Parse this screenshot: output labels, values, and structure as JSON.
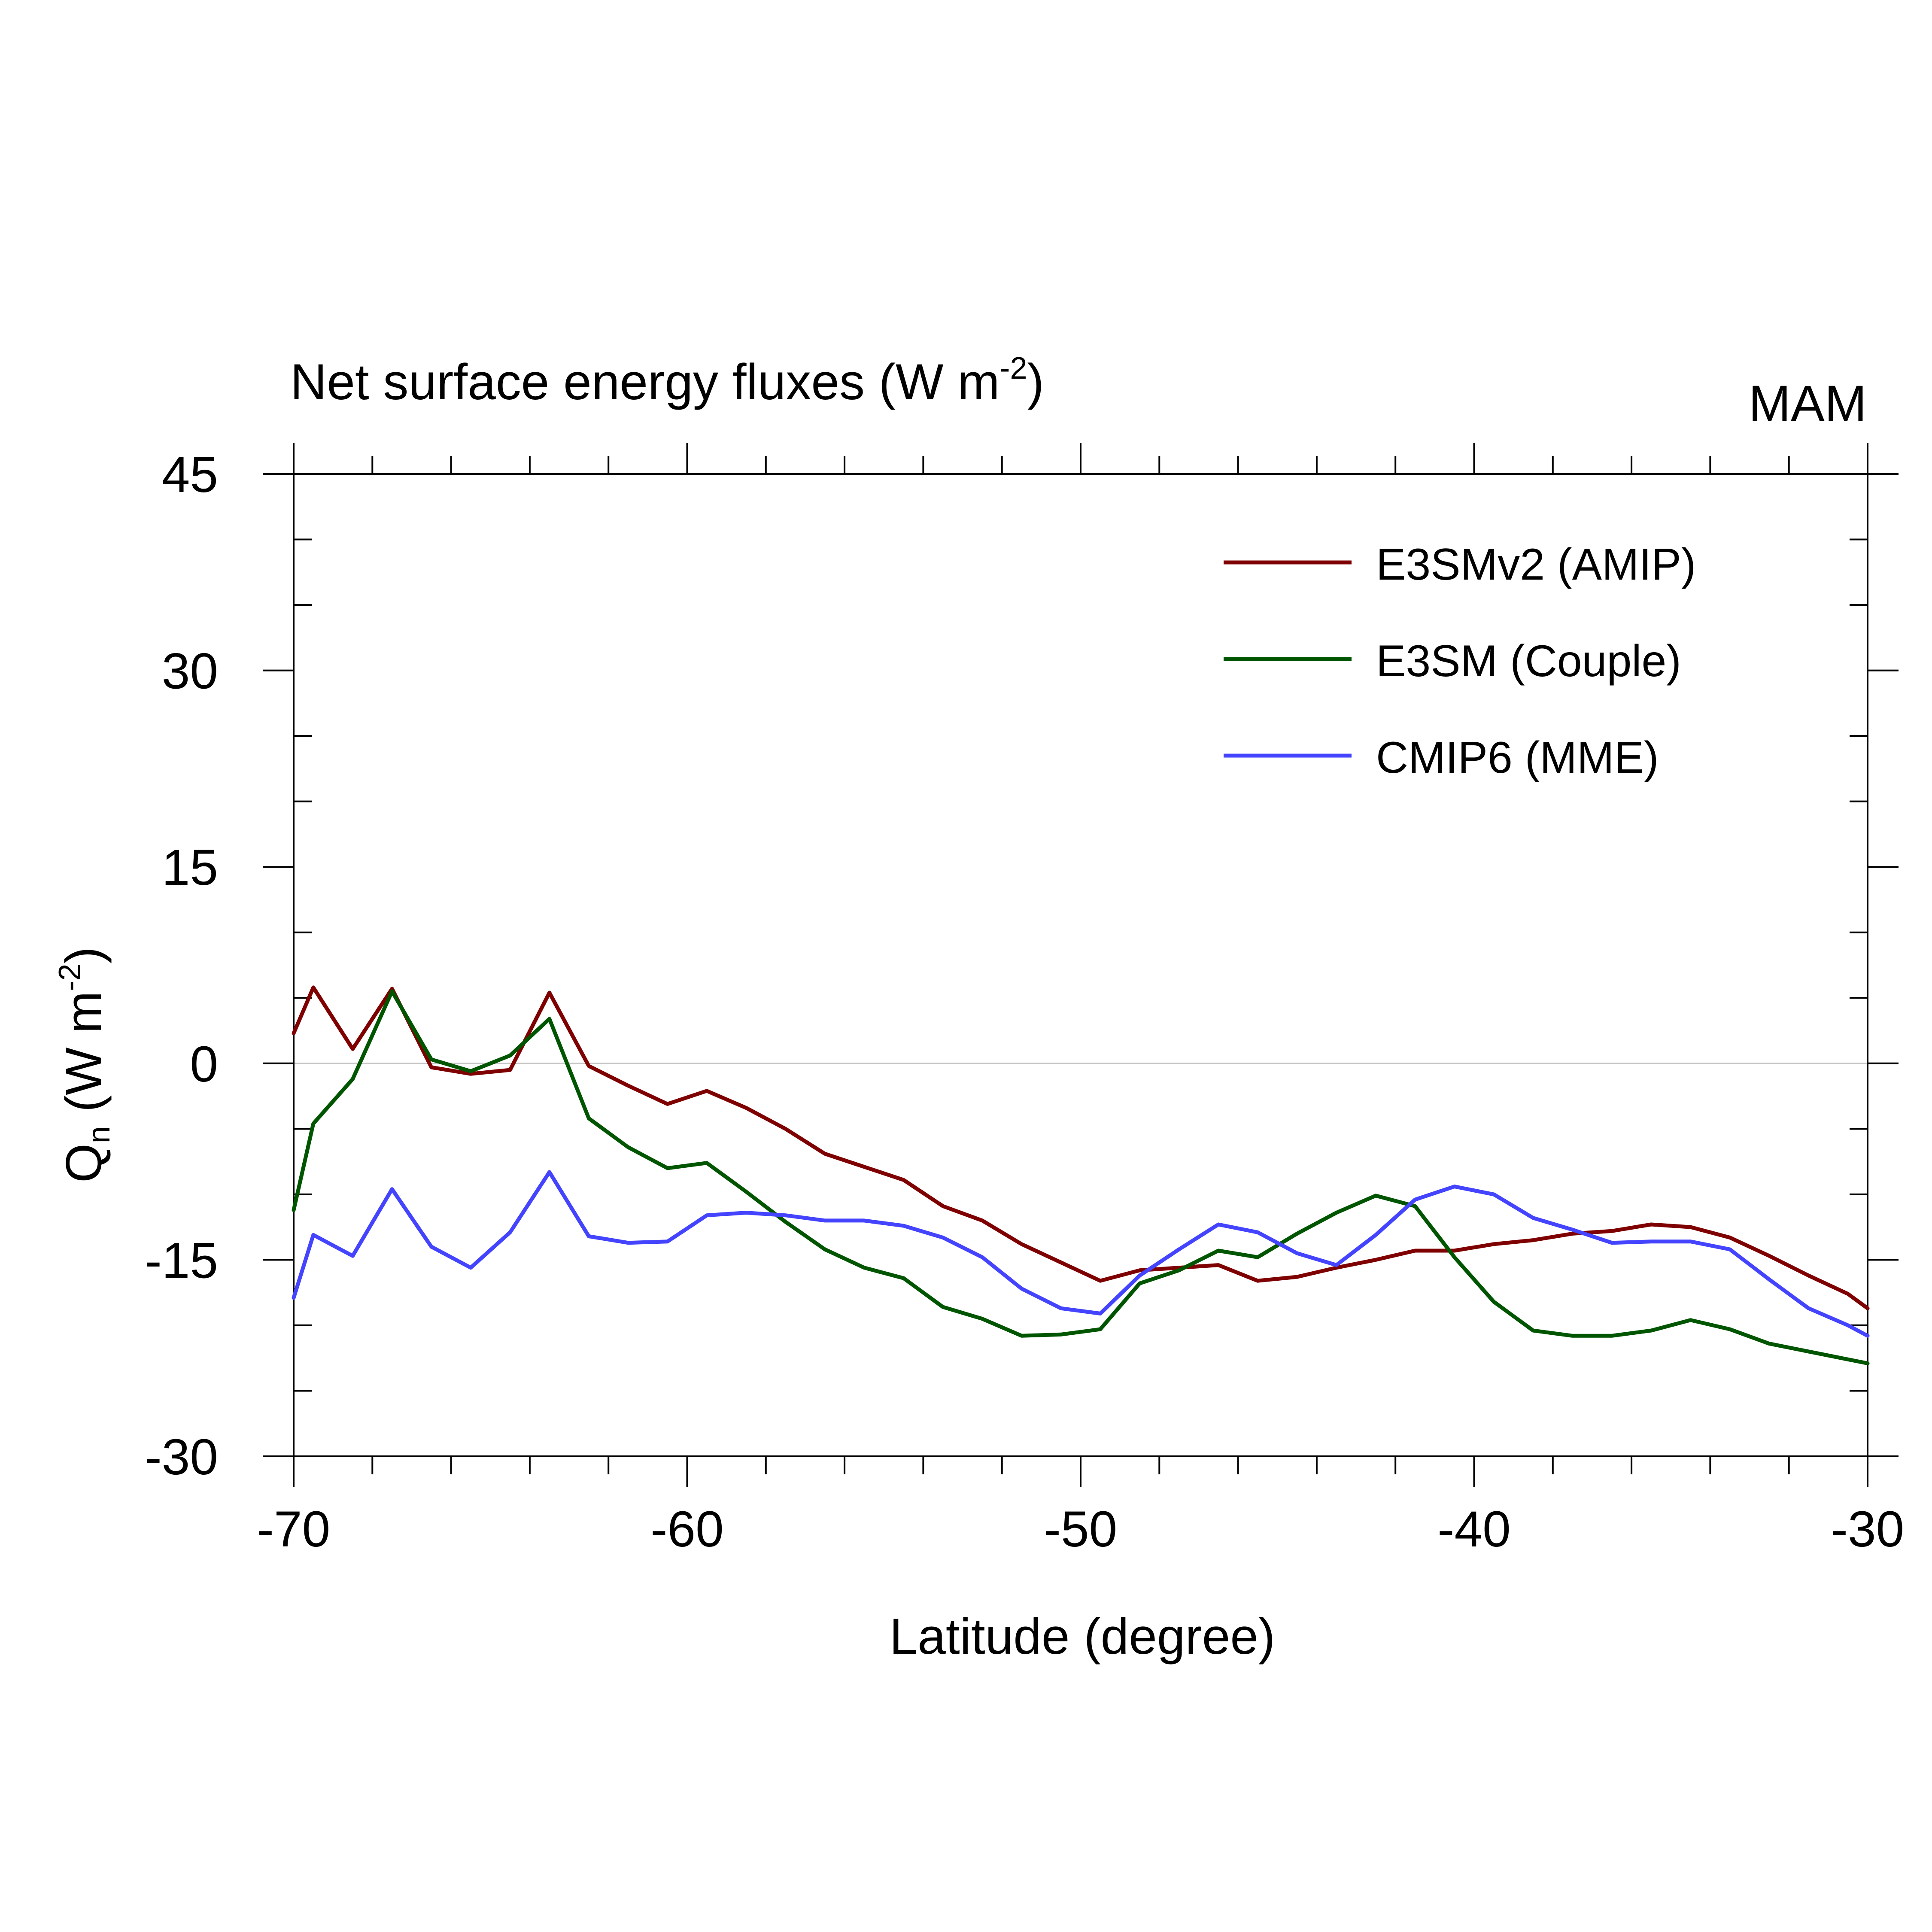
{
  "chart_data": {
    "type": "line",
    "title": "Net surface energy fluxes (W m",
    "title_sup": "-2",
    "title_close": ")",
    "season": "MAM",
    "xlabel": "Latitude (degree)",
    "ylabel_main": "Q",
    "ylabel_sub": "n",
    "ylabel_units": " (W m",
    "ylabel_sup": "-2",
    "ylabel_close": ")",
    "xlim": [
      -70,
      -30
    ],
    "ylim": [
      -30,
      45
    ],
    "x_ticks": [
      -70,
      -60,
      -50,
      -40,
      -30
    ],
    "x_tick_labels": [
      "-70",
      "-60",
      "-50",
      "-40",
      "-30"
    ],
    "x_minor_step": 2,
    "y_ticks": [
      45,
      30,
      15,
      0,
      -15,
      -30
    ],
    "y_tick_labels": [
      "45",
      "30",
      "15",
      "0",
      "-15",
      "-30"
    ],
    "y_minor_step": 5,
    "zero_line": true,
    "legend_position": "top-right",
    "x": [
      -70,
      -69.5,
      -68.5,
      -67.5,
      -66.5,
      -65.5,
      -64.5,
      -63.5,
      -62.5,
      -61.5,
      -60.5,
      -59.5,
      -58.5,
      -57.5,
      -56.5,
      -55.5,
      -54.5,
      -53.5,
      -52.5,
      -51.5,
      -50.5,
      -49.5,
      -48.5,
      -47.5,
      -46.5,
      -45.5,
      -44.5,
      -43.5,
      -42.5,
      -41.5,
      -40.5,
      -39.5,
      -38.5,
      -37.5,
      -36.5,
      -35.5,
      -34.5,
      -33.5,
      -32.5,
      -31.5,
      -30.5,
      -30
    ],
    "series": [
      {
        "name": "E3SMv2 (AMIP)",
        "color": "#7f0000",
        "values": [
          2.3,
          5.8,
          1.1,
          5.7,
          -0.3,
          -0.8,
          -0.5,
          5.4,
          -0.2,
          -1.7,
          -3.1,
          -2.1,
          -3.4,
          -5.0,
          -6.9,
          -7.9,
          -8.9,
          -10.9,
          -12.0,
          -13.8,
          -15.2,
          -16.6,
          -15.8,
          -15.6,
          -15.4,
          -16.6,
          -16.3,
          -15.6,
          -15.0,
          -14.3,
          -14.3,
          -13.8,
          -13.5,
          -13.0,
          -12.8,
          -12.3,
          -12.5,
          -13.3,
          -14.7,
          -16.2,
          -17.6,
          -18.7
        ],
        "start_value": 2.3,
        "end_value": -18.7
      },
      {
        "name": "E3SM (Couple)",
        "color": "#005500",
        "values": [
          -11.2,
          -4.6,
          -1.2,
          5.5,
          0.3,
          -0.6,
          0.6,
          3.4,
          -4.2,
          -6.4,
          -8.0,
          -7.6,
          -9.8,
          -12.1,
          -14.2,
          -15.6,
          -16.4,
          -18.6,
          -19.5,
          -20.8,
          -20.7,
          -20.3,
          -16.8,
          -15.8,
          -14.3,
          -14.8,
          -13.0,
          -11.4,
          -10.1,
          -10.9,
          -14.8,
          -18.2,
          -20.4,
          -20.8,
          -20.8,
          -20.4,
          -19.6,
          -20.3,
          -21.4,
          -22.0,
          -22.6,
          -22.9
        ],
        "start_value": -11.2,
        "end_value": -22.9
      },
      {
        "name": "CMIP6 (MME)",
        "color": "#4444ff",
        "values": [
          -17.9,
          -13.1,
          -14.7,
          -9.6,
          -14.0,
          -15.6,
          -12.9,
          -8.3,
          -13.2,
          -13.7,
          -13.6,
          -11.6,
          -11.4,
          -11.6,
          -12.0,
          -12.0,
          -12.4,
          -13.3,
          -14.8,
          -17.2,
          -18.7,
          -19.1,
          -16.2,
          -14.2,
          -12.3,
          -12.9,
          -14.5,
          -15.4,
          -13.1,
          -10.4,
          -9.4,
          -10.0,
          -11.8,
          -12.7,
          -13.7,
          -13.6,
          -13.6,
          -14.2,
          -16.5,
          -18.7,
          -20.0,
          -20.8
        ],
        "start_value": -17.9,
        "end_value": -20.8
      }
    ]
  }
}
